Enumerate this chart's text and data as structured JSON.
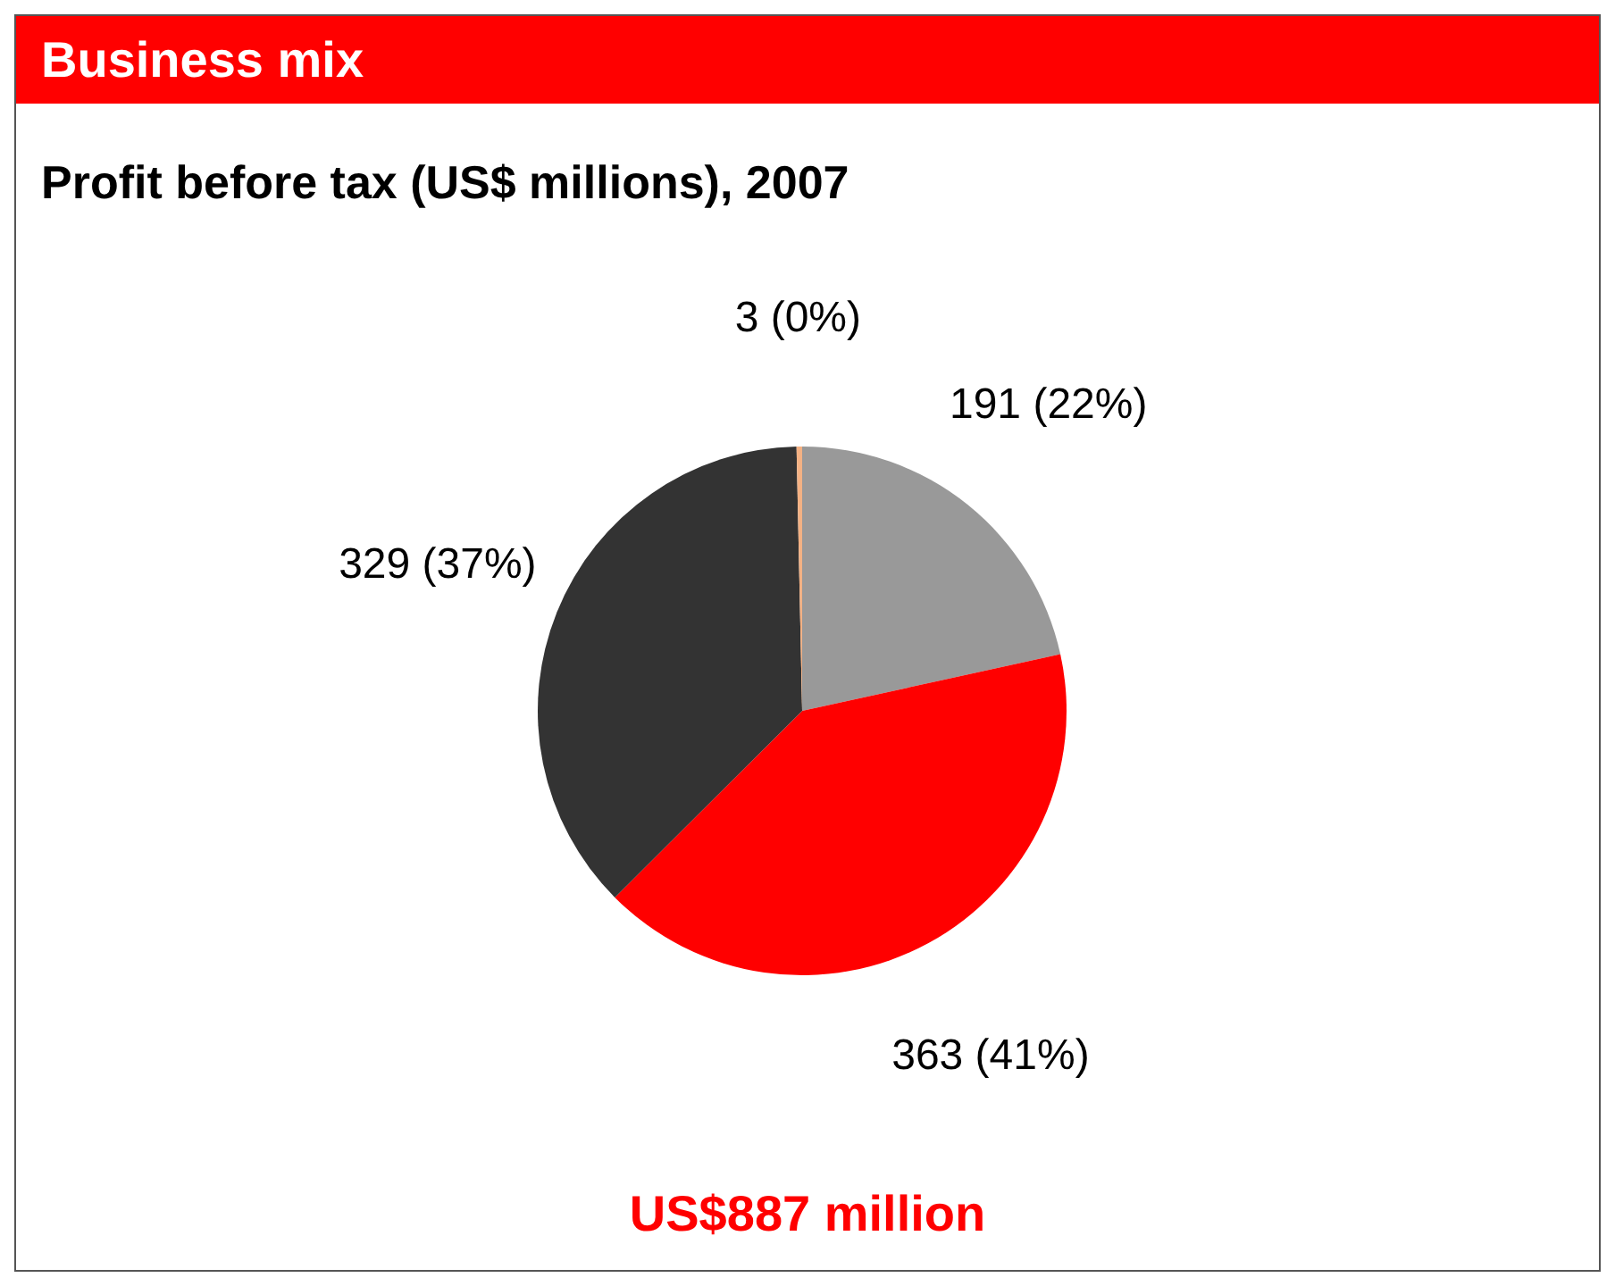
{
  "chart_data": {
    "type": "pie",
    "title": "Business mix",
    "subtitle": "Profit before tax (US$ millions), 2007",
    "categories": [
      null,
      null,
      null,
      null
    ],
    "values": [
      191,
      363,
      329,
      3
    ],
    "colors": [
      "#999999",
      "#ff0000",
      "#333333",
      "#f4b183"
    ],
    "value_labels": [
      "191 (22%)",
      "363 (41%)",
      "329 (37%)",
      "3 (0%)"
    ],
    "annotations": [
      "US$887 million"
    ]
  }
}
